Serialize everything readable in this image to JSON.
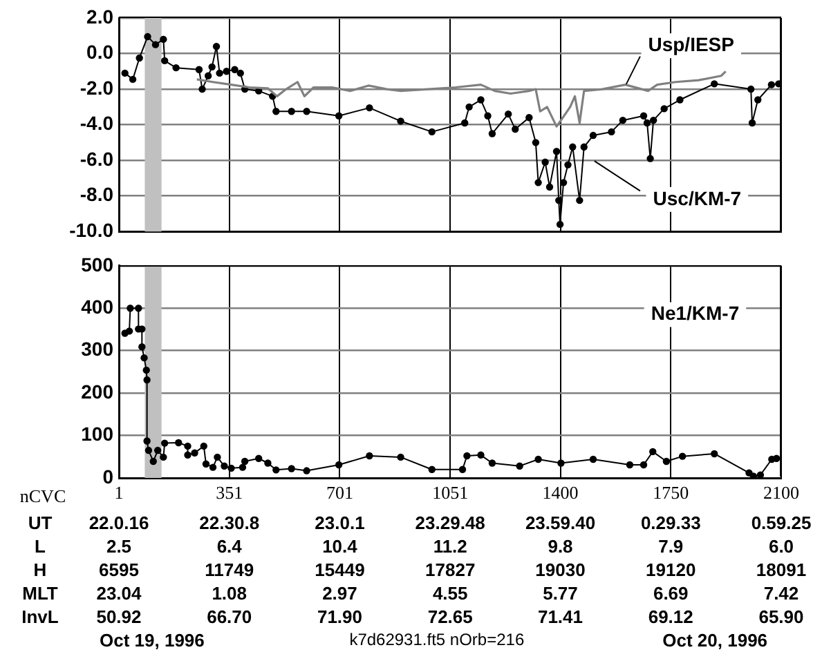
{
  "chart_data": [
    {
      "type": "line",
      "xlim": [
        1,
        2100
      ],
      "xticks": [
        1,
        351,
        701,
        1051,
        1400,
        1750,
        2100
      ],
      "ylim": [
        -10,
        2
      ],
      "yticks": [
        {
          "value": -10,
          "label": "-10.0"
        },
        {
          "value": -8,
          "label": "-8.0"
        },
        {
          "value": -6,
          "label": "-6.0"
        },
        {
          "value": -4,
          "label": "-4.0"
        },
        {
          "value": -2,
          "label": "-2.0"
        },
        {
          "value": 0,
          "label": "0.0"
        },
        {
          "value": 2,
          "label": "2.0"
        }
      ],
      "grid": true,
      "tick_labels": "y",
      "bands": [
        {
          "axis": "x",
          "from": 83,
          "to": 136,
          "color": "#c0c0c0"
        }
      ],
      "series": [
        {
          "name": "Usp/IESP",
          "color": "#808080",
          "marker": "none",
          "x": [
            248,
            299,
            357,
            415,
            473,
            502,
            531,
            567,
            589,
            618,
            676,
            734,
            792,
            850,
            894,
            981,
            1068,
            1148,
            1192,
            1242,
            1301,
            1322,
            1336,
            1358,
            1388,
            1402,
            1431,
            1446,
            1461,
            1475,
            1533,
            1606,
            1678,
            1707,
            1765,
            1838,
            1910,
            1924
          ],
          "values": [
            -1.45,
            -1.6,
            -1.75,
            -1.9,
            -1.95,
            -2.4,
            -2.0,
            -1.6,
            -2.4,
            -1.9,
            -1.9,
            -2.1,
            -1.8,
            -2.0,
            -2.1,
            -2.0,
            -1.9,
            -1.75,
            -2.1,
            -2.25,
            -2.1,
            -2.0,
            -3.25,
            -3.0,
            -4.1,
            -3.75,
            -3.0,
            -2.4,
            -3.9,
            -2.1,
            -2.0,
            -1.75,
            -2.1,
            -1.75,
            -1.6,
            -1.5,
            -1.25,
            -1.0
          ]
        },
        {
          "name": "Usc/KM-7",
          "color": "#000000",
          "marker": "circle",
          "x": [
            20,
            45,
            66,
            92,
            117,
            142,
            146,
            182,
            255,
            265,
            284,
            296,
            310,
            320,
            342,
            368,
            386,
            400,
            444,
            488,
            499,
            548,
            596,
            698,
            795,
            894,
            993,
            1097,
            1111,
            1148,
            1170,
            1184,
            1235,
            1257,
            1301,
            1322,
            1330,
            1352,
            1366,
            1388,
            1395,
            1399,
            1410,
            1424,
            1439,
            1461,
            1475,
            1504,
            1562,
            1598,
            1664,
            1675,
            1685,
            1695,
            1729,
            1779,
            1888,
            2004,
            2008,
            2026,
            2069,
            2092
          ],
          "values": [
            -1.1,
            -1.45,
            -0.25,
            0.95,
            0.5,
            0.8,
            -0.4,
            -0.8,
            -0.9,
            -2.0,
            -1.25,
            -0.75,
            0.4,
            -1.1,
            -1.0,
            -0.9,
            -1.1,
            -2.0,
            -2.1,
            -2.4,
            -3.25,
            -3.25,
            -3.25,
            -3.5,
            -3.05,
            -3.8,
            -4.4,
            -3.9,
            -3.0,
            -2.6,
            -3.5,
            -4.5,
            -3.4,
            -4.25,
            -3.6,
            -5.0,
            -7.25,
            -6.1,
            -7.5,
            -5.5,
            -8.25,
            -9.6,
            -7.25,
            -6.25,
            -5.25,
            -8.25,
            -5.25,
            -4.6,
            -4.4,
            -3.75,
            -3.5,
            -3.9,
            -5.9,
            -3.75,
            -3.1,
            -2.6,
            -1.7,
            -2.0,
            -3.9,
            -2.6,
            -1.75,
            -1.7
          ]
        }
      ]
    },
    {
      "type": "line",
      "xlabel": "nCVC",
      "xlim": [
        1,
        2100
      ],
      "xticks": [
        1,
        351,
        701,
        1051,
        1400,
        1750,
        2100
      ],
      "ylim": [
        0,
        500
      ],
      "yticks": [
        0,
        100,
        200,
        300,
        400,
        500
      ],
      "grid": true,
      "bands": [
        {
          "axis": "x",
          "from": 83,
          "to": 136,
          "color": "#c0c0c0"
        }
      ],
      "series": [
        {
          "name": "Ne1/KM-7",
          "color": "#000000",
          "marker": "circle",
          "x": [
            20,
            34,
            37,
            63,
            63,
            74,
            74,
            81,
            88,
            90,
            90,
            95,
            110,
            124,
            142,
            146,
            190,
            219,
            219,
            241,
            270,
            277,
            299,
            313,
            335,
            357,
            393,
            400,
            444,
            473,
            499,
            548,
            596,
            698,
            795,
            894,
            993,
            1090,
            1104,
            1148,
            1184,
            1271,
            1330,
            1402,
            1504,
            1620,
            1664,
            1693,
            1736,
            1787,
            1888,
            1998,
            2012,
            2034,
            2070,
            2085
          ],
          "values": [
            341,
            346,
            400,
            400,
            351,
            351,
            309,
            283,
            254,
            231,
            87,
            65,
            39,
            65,
            49,
            82,
            83,
            75,
            54,
            59,
            75,
            33,
            25,
            49,
            28,
            23,
            25,
            39,
            46,
            35,
            19,
            22,
            17,
            31,
            52,
            49,
            20,
            20,
            52,
            54,
            35,
            28,
            44,
            35,
            44,
            31,
            31,
            62,
            39,
            51,
            57,
            12,
            4,
            7,
            44,
            46
          ]
        }
      ],
      "annotations": [
        "UT",
        "22.0.16",
        "22.30.8",
        "23.0.1",
        "23.29.48",
        "23.59.40",
        "0.29.33",
        "0.59.25",
        "L",
        "2.5",
        "6.4",
        "10.4",
        "11.2",
        "9.8",
        "7.9",
        "6.0",
        "H",
        "6595",
        "11749",
        "15449",
        "17827",
        "19030",
        "19120",
        "18091",
        "MLT",
        "23.04",
        "1.08",
        "2.97",
        "4.55",
        "5.77",
        "6.69",
        "7.42",
        "InvL",
        "50.92",
        "66.70",
        "71.90",
        "72.65",
        "71.41",
        "69.12",
        "65.90",
        "Oct 19, 1996",
        "k7d62931.ft5  nOrb=216",
        "Oct 20, 1996"
      ]
    }
  ]
}
